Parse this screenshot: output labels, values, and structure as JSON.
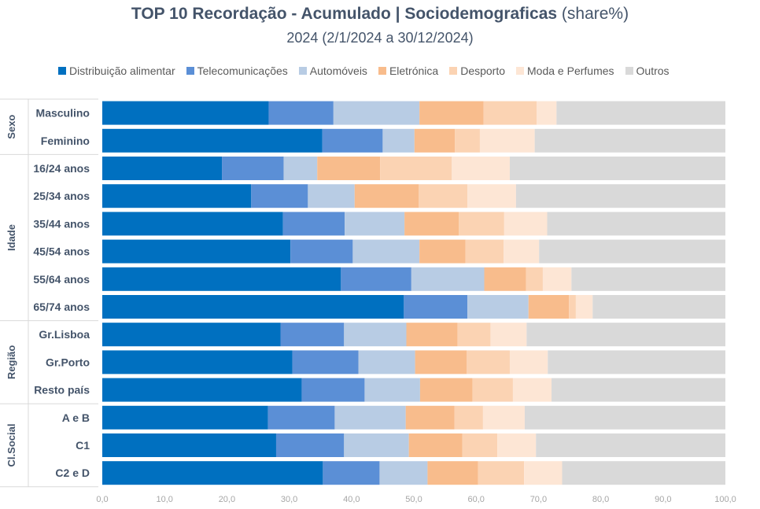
{
  "header": {
    "title_bold_1": "TOP 10 Recordação",
    "title_sep": " - ",
    "title_bold_2": "Acumulado | Sociodemograficas",
    "title_suffix": " (share%)",
    "subtitle": "2024 (2/1/2024 a 30/12/2024)"
  },
  "chart_data": {
    "type": "bar",
    "orientation": "horizontal",
    "stacked": true,
    "title": "TOP 10 Recordação - Acumulado | Sociodemograficas (share%)",
    "subtitle": "2024 (2/1/2024 a 30/12/2024)",
    "legend_position": "top",
    "grid": false,
    "xlim": [
      0,
      100
    ],
    "xticks": [
      "0,0",
      "10,0",
      "20,0",
      "30,0",
      "40,0",
      "50,0",
      "60,0",
      "70,0",
      "80,0",
      "90,0",
      "100,0"
    ],
    "groups": [
      {
        "label": "Sexo",
        "categories": [
          "Masculino",
          "Feminino"
        ]
      },
      {
        "label": "Idade",
        "categories": [
          "16/24 anos",
          "25/34 anos",
          "35/44 anos",
          "45/54 anos",
          "55/64 anos",
          "65/74 anos"
        ]
      },
      {
        "label": "Região",
        "categories": [
          "Gr.Lisboa",
          "Gr.Porto",
          "Resto país"
        ]
      },
      {
        "label": "Cl.Social",
        "categories": [
          "A e B",
          "C1",
          "C2 e D"
        ]
      }
    ],
    "categories": [
      "Masculino",
      "Feminino",
      "16/24 anos",
      "25/34 anos",
      "35/44 anos",
      "45/54 anos",
      "55/64 anos",
      "65/74 anos",
      "Gr.Lisboa",
      "Gr.Porto",
      "Resto país",
      "A e B",
      "C1",
      "C2 e D"
    ],
    "series": [
      {
        "name": "Distribuição alimentar",
        "color": "#0070c0",
        "values": [
          26.7,
          35.3,
          19.2,
          23.9,
          29.0,
          30.2,
          38.3,
          48.4,
          28.6,
          30.5,
          32.0,
          26.6,
          27.9,
          35.4
        ]
      },
      {
        "name": "Telecomunicações",
        "color": "#5b8fd6",
        "values": [
          10.4,
          9.7,
          9.9,
          9.1,
          9.9,
          10.0,
          11.3,
          10.2,
          10.2,
          10.6,
          10.1,
          10.7,
          10.9,
          9.1
        ]
      },
      {
        "name": "Automóveis",
        "color": "#b8cce4",
        "values": [
          13.8,
          5.1,
          5.4,
          7.5,
          9.6,
          10.7,
          11.7,
          9.8,
          10.0,
          9.1,
          8.9,
          11.4,
          10.4,
          7.7
        ]
      },
      {
        "name": "Eletrónica",
        "color": "#f8bc8c",
        "values": [
          10.3,
          6.5,
          10.1,
          10.3,
          8.7,
          7.4,
          6.7,
          6.5,
          8.2,
          8.3,
          8.4,
          7.8,
          8.6,
          8.1
        ]
      },
      {
        "name": "Desporto",
        "color": "#fbd3b3",
        "values": [
          8.5,
          4.0,
          11.5,
          7.8,
          7.3,
          6.1,
          2.7,
          1.1,
          5.3,
          6.9,
          6.5,
          4.6,
          5.6,
          7.4
        ]
      },
      {
        "name": "Moda e Perfumes",
        "color": "#fde6d5",
        "values": [
          3.2,
          8.8,
          9.3,
          7.8,
          6.9,
          5.7,
          4.6,
          2.7,
          5.8,
          6.1,
          6.2,
          6.7,
          6.2,
          6.1
        ]
      },
      {
        "name": "Outros",
        "color": "#d9d9d9",
        "values": [
          27.1,
          30.6,
          34.6,
          33.6,
          28.6,
          29.9,
          24.7,
          21.3,
          31.9,
          28.5,
          27.9,
          32.2,
          30.4,
          26.2
        ]
      }
    ]
  }
}
